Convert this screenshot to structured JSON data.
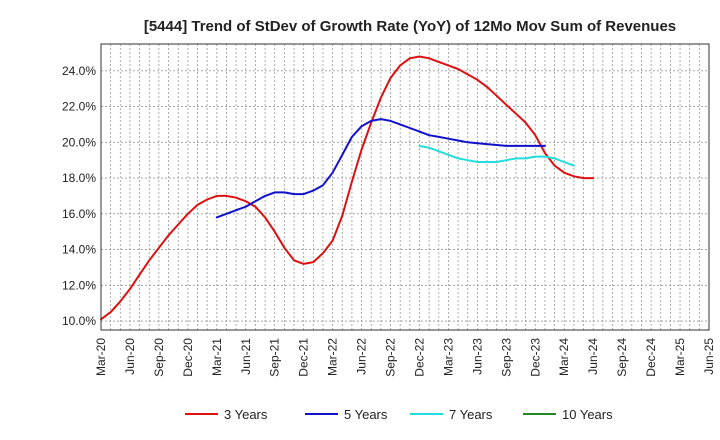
{
  "chart_data": {
    "type": "line",
    "title": "[5444]  Trend of StDev of Growth Rate (YoY) of 12Mo Mov Sum of Revenues",
    "xlabel": "",
    "ylabel": "",
    "ylim": [
      9.5,
      25.5
    ],
    "y_ticks": [
      10.0,
      12.0,
      14.0,
      16.0,
      18.0,
      20.0,
      22.0,
      24.0
    ],
    "y_tick_labels": [
      "10.0%",
      "12.0%",
      "14.0%",
      "16.0%",
      "18.0%",
      "20.0%",
      "22.0%",
      "24.0%"
    ],
    "x_tick_labels": [
      "Mar-20",
      "Jun-20",
      "Sep-20",
      "Dec-20",
      "Mar-21",
      "Jun-21",
      "Sep-21",
      "Dec-21",
      "Mar-22",
      "Jun-22",
      "Sep-22",
      "Dec-22",
      "Mar-23",
      "Jun-23",
      "Sep-23",
      "Dec-23",
      "Mar-24",
      "Jun-24",
      "Sep-24",
      "Dec-24",
      "Mar-25",
      "Jun-25"
    ],
    "grid": true,
    "legend_position": "bottom",
    "series": [
      {
        "name": "3 Years",
        "color": "#dd1111",
        "start_index": 0,
        "values": [
          10.1,
          10.5,
          11.1,
          11.8,
          12.6,
          13.4,
          14.1,
          14.8,
          15.4,
          16.0,
          16.5,
          16.8,
          17.0,
          17.0,
          16.9,
          16.7,
          16.4,
          15.8,
          15.0,
          14.1,
          13.4,
          13.2,
          13.3,
          13.8,
          14.5,
          15.9,
          17.8,
          19.6,
          21.1,
          22.5,
          23.6,
          24.3,
          24.7,
          24.8,
          24.7,
          24.5,
          24.3,
          24.1,
          23.8,
          23.5,
          23.1,
          22.6,
          22.1,
          21.6,
          21.1,
          20.4,
          19.4,
          18.7,
          18.3,
          18.1,
          18.0,
          18.0
        ]
      },
      {
        "name": "5 Years",
        "color": "#1111cc",
        "start_index": 12,
        "values": [
          15.8,
          16.0,
          16.2,
          16.4,
          16.7,
          17.0,
          17.2,
          17.2,
          17.1,
          17.1,
          17.3,
          17.6,
          18.3,
          19.3,
          20.3,
          20.9,
          21.2,
          21.3,
          21.2,
          21.0,
          20.8,
          20.6,
          20.4,
          20.3,
          20.2,
          20.1,
          20.0,
          19.95,
          19.9,
          19.85,
          19.8,
          19.8,
          19.8,
          19.8,
          19.8
        ]
      },
      {
        "name": "7 Years",
        "color": "#22dddd",
        "start_index": 33,
        "values": [
          19.8,
          19.7,
          19.5,
          19.3,
          19.1,
          19.0,
          18.9,
          18.9,
          18.9,
          19.0,
          19.1,
          19.1,
          19.2,
          19.2,
          19.1,
          18.9,
          18.7
        ]
      },
      {
        "name": "10 Years",
        "color": "#228822",
        "start_index": 0,
        "values": []
      }
    ]
  }
}
